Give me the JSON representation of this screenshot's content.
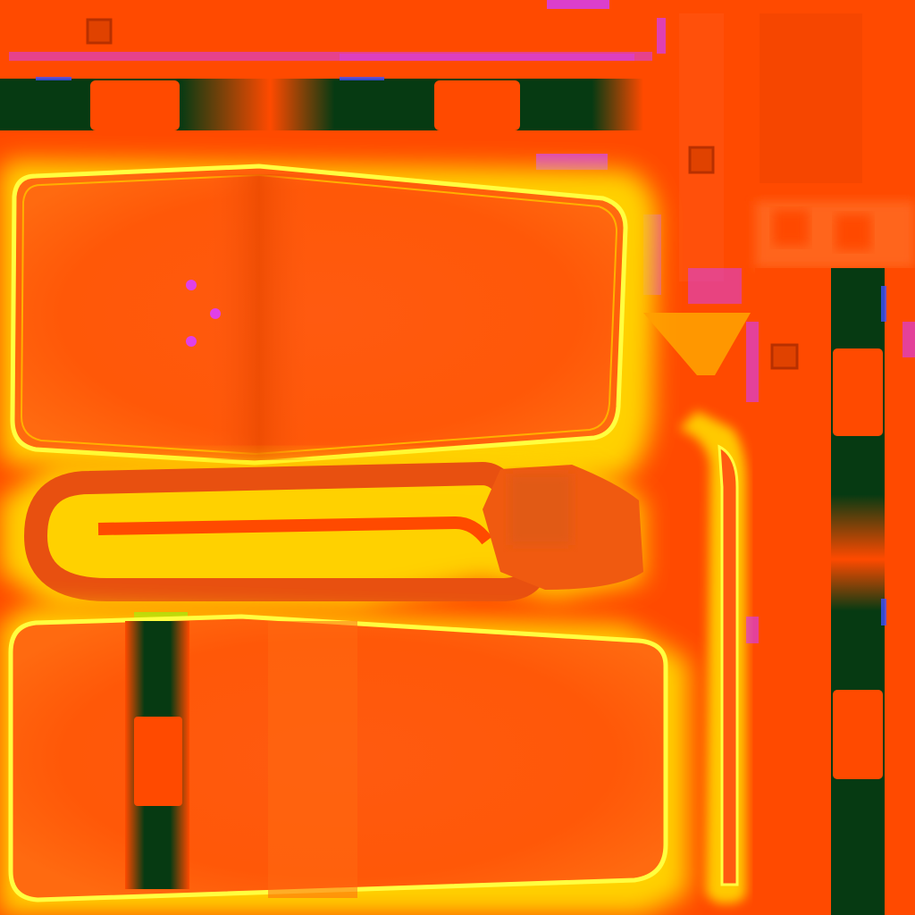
{
  "texture": {
    "kind": "uv-texture-atlas",
    "printed_text": [],
    "palette": {
      "base_orange": "#ff4a00",
      "panel_orange": "#ff5a10",
      "glow_yellow": "#ffe000",
      "rim_yellow": "#ffff40",
      "strap_dark_green": "#063a12",
      "magenta_artifact": "#d23cff",
      "blue_artifact": "#3c50ff",
      "rivet_magenta": "#e040e8",
      "bright_green": "#40ff20"
    },
    "islands": [
      {
        "name": "top-strap-strip",
        "icon": "strap-strip"
      },
      {
        "name": "upper-rounded-panel",
        "icon": "rounded-panel"
      },
      {
        "name": "handle-loop",
        "icon": "handle-loop"
      },
      {
        "name": "lower-rounded-panel",
        "icon": "rounded-panel"
      },
      {
        "name": "right-vertical-strap",
        "icon": "strap-strip"
      }
    ],
    "rivets_count": 3
  }
}
